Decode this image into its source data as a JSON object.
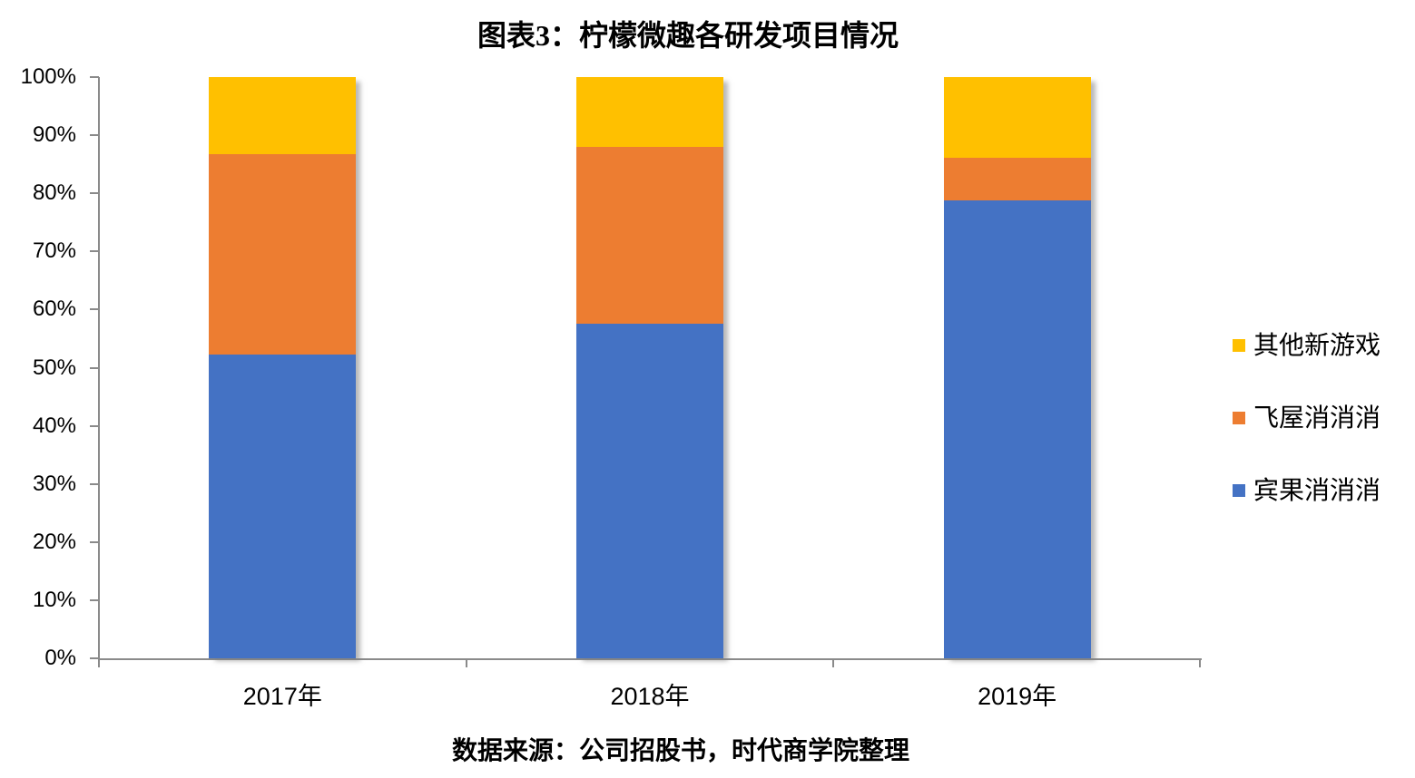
{
  "chart_data": {
    "type": "bar",
    "subtype": "stacked-100-percent",
    "title": "图表3：柠檬微趣各研发项目情况",
    "source": "数据来源：公司招股书，时代商学院整理",
    "categories": [
      "2017年",
      "2018年",
      "2019年"
    ],
    "series": [
      {
        "name": "宾果消消消",
        "color": "#4472C4",
        "values": [
          52.2,
          57.6,
          78.8
        ]
      },
      {
        "name": "飞屋消消消",
        "color": "#ED7D31",
        "values": [
          34.5,
          30.4,
          7.4
        ]
      },
      {
        "name": "其他新游戏",
        "color": "#FFC000",
        "values": [
          13.3,
          12.0,
          13.8
        ]
      }
    ],
    "y_axis": {
      "ticks": [
        "0%",
        "10%",
        "20%",
        "30%",
        "40%",
        "50%",
        "60%",
        "70%",
        "80%",
        "90%",
        "100%"
      ],
      "min": 0,
      "max": 100,
      "unit": "%"
    },
    "legend": {
      "position": "right",
      "items_top_to_bottom": [
        "其他新游戏",
        "飞屋消消消",
        "宾果消消消"
      ]
    },
    "axis_color": "#8A8A8A",
    "grid": false,
    "gap_note": "bars ~162px wide, plot 100%=top"
  }
}
